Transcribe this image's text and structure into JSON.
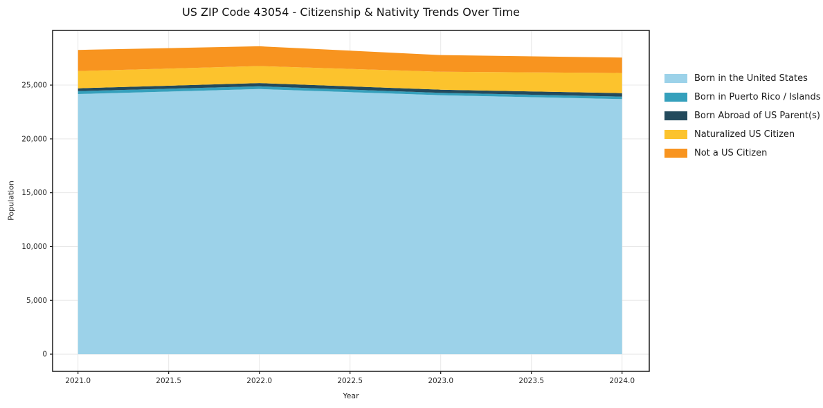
{
  "chart_data": {
    "type": "area",
    "stacked": true,
    "title": "US ZIP Code 43054 - Citizenship & Nativity Trends Over Time",
    "xlabel": "Year",
    "ylabel": "Population",
    "x": [
      2021,
      2022,
      2023,
      2024
    ],
    "series": [
      {
        "name": "Born in the United States",
        "color": "#9CD2E9",
        "values": [
          24170,
          24630,
          24060,
          23700
        ]
      },
      {
        "name": "Born in Puerto Rico / Islands",
        "color": "#35A0BC",
        "values": [
          270,
          260,
          220,
          230
        ]
      },
      {
        "name": "Born Abroad of US Parent(s)",
        "color": "#234A5C",
        "values": [
          260,
          300,
          290,
          320
        ]
      },
      {
        "name": "Naturalized US Citizen",
        "color": "#FCC32D",
        "values": [
          1600,
          1580,
          1670,
          1880
        ]
      },
      {
        "name": "Not a US Citizen",
        "color": "#F8941F",
        "values": [
          1970,
          1840,
          1550,
          1430
        ]
      }
    ],
    "xticks": {
      "values": [
        2021,
        2021.5,
        2022,
        2022.5,
        2023,
        2023.5,
        2024
      ],
      "labels": [
        "2021.0",
        "2021.5",
        "2022.0",
        "2022.5",
        "2023.0",
        "2023.5",
        "2024.0"
      ]
    },
    "yticks": {
      "values": [
        0,
        5000,
        10000,
        15000,
        20000,
        25000
      ],
      "labels": [
        "0",
        "5,000",
        "10,000",
        "15,000",
        "20,000",
        "25,000"
      ]
    },
    "xlim": [
      2020.86,
      2024.15
    ],
    "ylim": [
      -1600,
      30080
    ],
    "grid": true,
    "legend_position": "right-outside",
    "colors": {
      "grid": "#E8E8E8",
      "frame": "#1A1A1A",
      "tick_text": "#262626",
      "background": "#FFFFFF"
    }
  }
}
